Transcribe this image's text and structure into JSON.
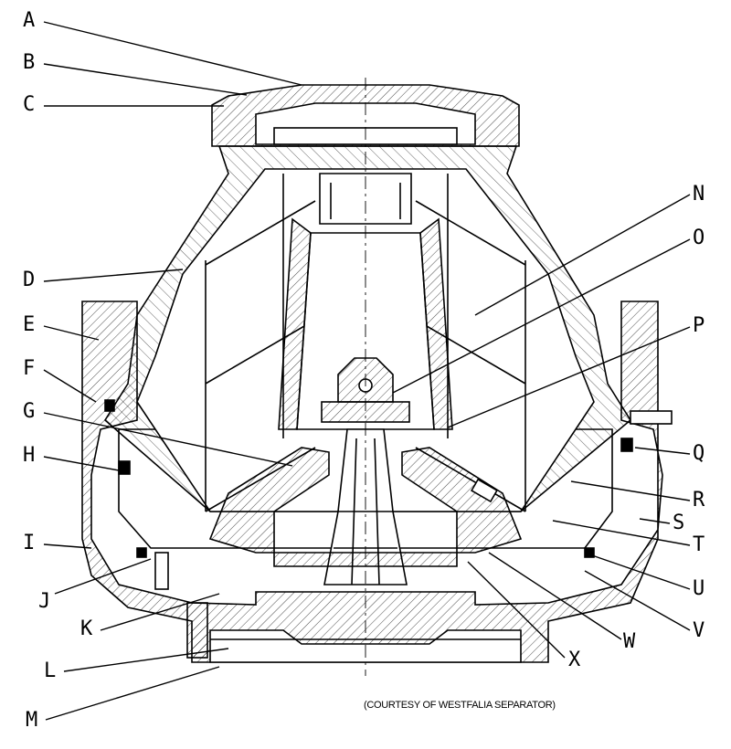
{
  "diagram": {
    "labels": [
      "A",
      "B",
      "C",
      "D",
      "E",
      "F",
      "G",
      "H",
      "I",
      "J",
      "K",
      "L",
      "M",
      "N",
      "O",
      "P",
      "Q",
      "R",
      "S",
      "T",
      "U",
      "V",
      "W",
      "X"
    ],
    "credit": "(COURTESY OF WESTFALIA SEPARATOR)"
  },
  "colors": {
    "ink": "#000000",
    "paper": "#ffffff",
    "section": "#e8e8e8"
  }
}
